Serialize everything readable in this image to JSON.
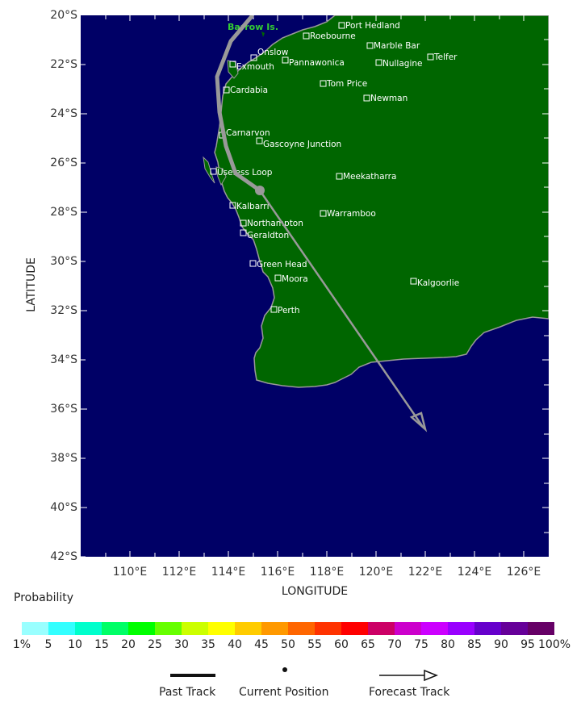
{
  "map": {
    "axes": {
      "lat_title": "LATITUDE",
      "lon_title": "LONGITUDE",
      "lat_ticks": [
        "20°S",
        "22°S",
        "24°S",
        "26°S",
        "28°S",
        "30°S",
        "32°S",
        "34°S",
        "36°S",
        "38°S",
        "40°S",
        "42°S"
      ],
      "lon_ticks": [
        "110°E",
        "112°E",
        "114°E",
        "116°E",
        "118°E",
        "120°E",
        "122°E",
        "124°E",
        "126°E"
      ]
    },
    "colors": {
      "ocean": "#000066",
      "land": "#006600",
      "coast": "#999999",
      "track": "#999999",
      "label": "#ffffff",
      "island_label": "#33cc33"
    },
    "island_label": "Barrow Is.",
    "cities": [
      {
        "name": "Port Hedland"
      },
      {
        "name": "Roebourne"
      },
      {
        "name": "Marble Bar"
      },
      {
        "name": "Onslow"
      },
      {
        "name": "Telfer"
      },
      {
        "name": "Exmouth"
      },
      {
        "name": "Pannawonica"
      },
      {
        "name": "Nullagine"
      },
      {
        "name": "Tom Price"
      },
      {
        "name": "Cardabia"
      },
      {
        "name": "Newman"
      },
      {
        "name": "Carnarvon"
      },
      {
        "name": "Gascoyne Junction"
      },
      {
        "name": "Useless Loop"
      },
      {
        "name": "Meekatharra"
      },
      {
        "name": "Kalbarri"
      },
      {
        "name": "Warramboo"
      },
      {
        "name": "Northampton"
      },
      {
        "name": "Geraldton"
      },
      {
        "name": "Green Head"
      },
      {
        "name": "Moora"
      },
      {
        "name": "Kalgoorlie"
      },
      {
        "name": "Perth"
      }
    ],
    "track": {
      "past": [
        [
          -20.0,
          115.3
        ],
        [
          -21.0,
          114.3
        ],
        [
          -22.5,
          113.6
        ],
        [
          -24.0,
          113.8
        ],
        [
          -25.4,
          114.3
        ],
        [
          -26.3,
          114.8
        ],
        [
          -27.1,
          115.3
        ]
      ],
      "current_position": [
        -27.1,
        115.3
      ],
      "forecast_end": [
        -36.8,
        122.0
      ]
    }
  },
  "legend": {
    "probability_title": "Probability",
    "colorbar": [
      {
        "label": "1%",
        "color": "#99ffff"
      },
      {
        "label": "5",
        "color": "#33ffff"
      },
      {
        "label": "10",
        "color": "#00ffcc"
      },
      {
        "label": "15",
        "color": "#00ff66"
      },
      {
        "label": "20",
        "color": "#00ff00"
      },
      {
        "label": "25",
        "color": "#66ff00"
      },
      {
        "label": "30",
        "color": "#ccff00"
      },
      {
        "label": "35",
        "color": "#ffff00"
      },
      {
        "label": "40",
        "color": "#ffcc00"
      },
      {
        "label": "45",
        "color": "#ff9900"
      },
      {
        "label": "50",
        "color": "#ff6600"
      },
      {
        "label": "55",
        "color": "#ff3300"
      },
      {
        "label": "60",
        "color": "#ff0000"
      },
      {
        "label": "65",
        "color": "#cc0066"
      },
      {
        "label": "70",
        "color": "#cc00cc"
      },
      {
        "label": "75",
        "color": "#cc00ff"
      },
      {
        "label": "80",
        "color": "#9900ff"
      },
      {
        "label": "85",
        "color": "#6600cc"
      },
      {
        "label": "90",
        "color": "#660099"
      },
      {
        "label": "95",
        "color": "#660066"
      }
    ],
    "end_label": "100%",
    "symbols": {
      "past_track": "Past Track",
      "current_position": "Current Position",
      "forecast_track": "Forecast Track"
    }
  }
}
